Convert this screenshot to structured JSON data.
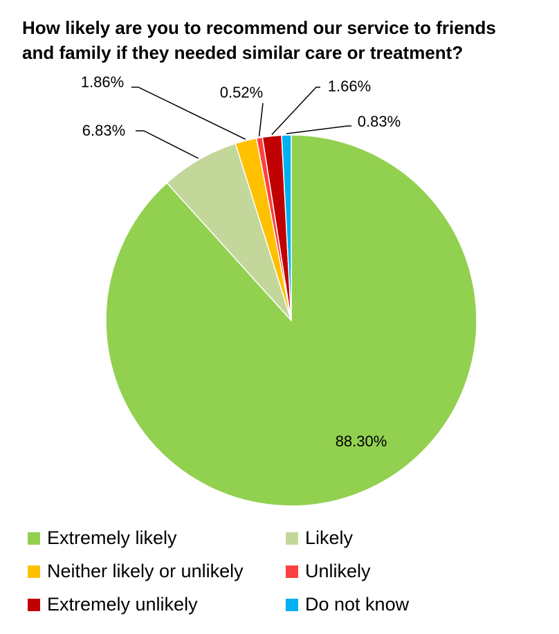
{
  "title_lines": [
    "How likely are you to recommend our service to friends",
    "and family if they needed similar care or treatment?"
  ],
  "chart_data": {
    "type": "pie",
    "title": "How likely are you to recommend our service to friends and family if they needed similar care or treatment?",
    "categories": [
      "Extremely likely",
      "Likely",
      "Neither likely or unlikely",
      "Unlikely",
      "Extremely unlikely",
      "Do not know"
    ],
    "values": [
      88.3,
      6.83,
      1.86,
      0.52,
      1.66,
      0.83
    ],
    "labels": [
      "88.30%",
      "6.83%",
      "1.86%",
      "0.52%",
      "1.66%",
      "0.83%"
    ],
    "colors": [
      "#92d050",
      "#c4d79b",
      "#ffc000",
      "#ff4040",
      "#c00000",
      "#00b0f0"
    ],
    "legend_position": "bottom"
  }
}
